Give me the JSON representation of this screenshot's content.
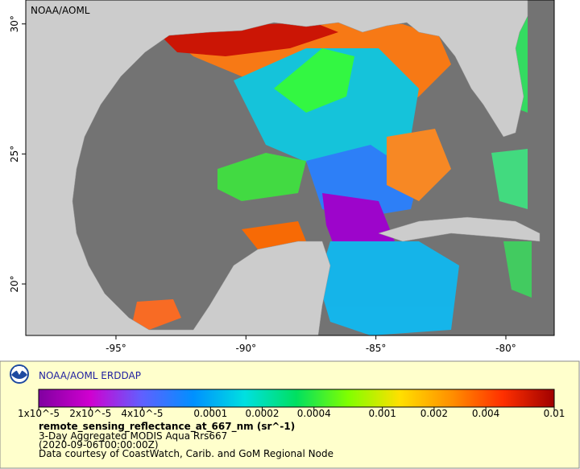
{
  "map": {
    "corner_label": "NOAA/AOML",
    "xlim": [
      -98.47,
      -78.14
    ],
    "ylim": [
      18.02,
      30.92
    ],
    "xticks": [
      {
        "value": -95,
        "label": "-95°"
      },
      {
        "value": -90,
        "label": "-90°"
      },
      {
        "value": -85,
        "label": "-85°"
      },
      {
        "value": -80,
        "label": "-80°"
      }
    ],
    "yticks": [
      {
        "value": 20,
        "label": "20°"
      },
      {
        "value": 25,
        "label": "25°"
      },
      {
        "value": 30,
        "label": "30°"
      }
    ]
  },
  "legend": {
    "title": "NOAA/AOML ERDDAP",
    "colorbar": {
      "scale": "log",
      "lim": [
        1e-05,
        0.01
      ],
      "colormap": [
        "#8000a0",
        "#d000d0",
        "#6060ff",
        "#0090ff",
        "#00e0e0",
        "#00e060",
        "#80ff00",
        "#ffe000",
        "#ff9000",
        "#ff3000",
        "#a00000"
      ],
      "ticks": [
        {
          "value": 1e-05,
          "label": "1x10^-5"
        },
        {
          "value": 2e-05,
          "label": "2x10^-5"
        },
        {
          "value": 4e-05,
          "label": "4x10^-5"
        },
        0.0001,
        0.0002,
        0.0004,
        0.001,
        0.002,
        0.004,
        0.01
      ]
    },
    "variable": "remote_sensing_reflectance_at_667_nm (sr^-1)",
    "dataset": "3-Day Aggregated MODIS Aqua Rrs667",
    "time": "(2020-09-06T00:00:00Z)",
    "credit": "Data courtesy of CoastWatch, Carib. and GoM Regional Node"
  }
}
